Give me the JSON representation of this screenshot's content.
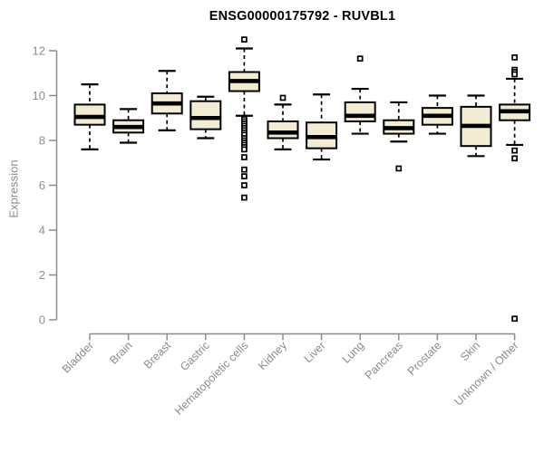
{
  "chart_data": {
    "type": "boxplot",
    "title": "ENSG00000175792 - RUVBL1",
    "ylabel": "Expression",
    "xlabel": "",
    "ylim": [
      0,
      12
    ],
    "yticks": [
      0,
      2,
      4,
      6,
      8,
      10,
      12
    ],
    "grid": false,
    "legend": "none",
    "categories": [
      "Bladder",
      "Brain",
      "Breast",
      "Gastric",
      "Hematopoietic cells",
      "Kidney",
      "Liver",
      "Lung",
      "Pancreas",
      "Prostate",
      "Skin",
      "Unknown / Other"
    ],
    "series": [
      {
        "category": "Bladder",
        "low": 7.6,
        "q1": 8.7,
        "median": 9.05,
        "q3": 9.6,
        "high": 10.5,
        "outliers": []
      },
      {
        "category": "Brain",
        "low": 7.9,
        "q1": 8.35,
        "median": 8.6,
        "q3": 8.9,
        "high": 9.4,
        "outliers": []
      },
      {
        "category": "Breast",
        "low": 8.45,
        "q1": 9.2,
        "median": 9.65,
        "q3": 10.1,
        "high": 11.1,
        "outliers": []
      },
      {
        "category": "Gastric",
        "low": 8.1,
        "q1": 8.5,
        "median": 9.0,
        "q3": 9.75,
        "high": 9.95,
        "outliers": []
      },
      {
        "category": "Hematopoietic cells",
        "low": 9.1,
        "q1": 10.2,
        "median": 10.65,
        "q3": 11.05,
        "high": 12.1,
        "outliers": [
          12.5,
          8.95,
          8.85,
          8.75,
          8.65,
          8.55,
          8.45,
          8.35,
          8.25,
          8.1,
          8.0,
          7.9,
          7.8,
          7.7,
          7.6,
          7.25,
          6.7,
          6.4,
          6.0,
          5.45
        ]
      },
      {
        "category": "Kidney",
        "low": 7.6,
        "q1": 8.1,
        "median": 8.35,
        "q3": 8.85,
        "high": 9.6,
        "outliers": [
          9.9
        ]
      },
      {
        "category": "Liver",
        "low": 7.15,
        "q1": 7.65,
        "median": 8.15,
        "q3": 8.8,
        "high": 10.05,
        "outliers": []
      },
      {
        "category": "Lung",
        "low": 8.3,
        "q1": 8.85,
        "median": 9.1,
        "q3": 9.7,
        "high": 10.3,
        "outliers": [
          11.65
        ]
      },
      {
        "category": "Pancreas",
        "low": 7.95,
        "q1": 8.3,
        "median": 8.55,
        "q3": 8.9,
        "high": 9.7,
        "outliers": [
          6.75
        ]
      },
      {
        "category": "Prostate",
        "low": 8.3,
        "q1": 8.7,
        "median": 9.1,
        "q3": 9.45,
        "high": 10.0,
        "outliers": []
      },
      {
        "category": "Skin",
        "low": 7.3,
        "q1": 7.75,
        "median": 8.65,
        "q3": 9.5,
        "high": 10.0,
        "outliers": []
      },
      {
        "category": "Unknown / Other",
        "low": 7.8,
        "q1": 8.9,
        "median": 9.3,
        "q3": 9.6,
        "high": 10.75,
        "outliers": [
          11.7,
          11.15,
          11.05,
          10.95,
          7.55,
          7.2,
          0.05
        ]
      }
    ],
    "colors": {
      "box_fill": "#f2ecd3",
      "box_border": "#000000",
      "median": "#000000",
      "axis": "#8c8c8c",
      "tick_label": "#8f8f8f",
      "title": "#000000",
      "background": "#ffffff"
    }
  }
}
